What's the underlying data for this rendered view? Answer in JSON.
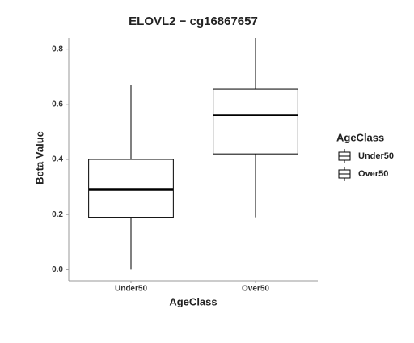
{
  "chart_data": {
    "type": "box",
    "title": "ELOVL2 − cg16867657",
    "xlabel": "AgeClass",
    "ylabel": "Beta Value",
    "legend_title": "AgeClass",
    "categories": [
      "Under50",
      "Over50"
    ],
    "boxes": [
      {
        "min": 0.0,
        "q1": 0.19,
        "median": 0.29,
        "q3": 0.4,
        "max": 0.67
      },
      {
        "min": 0.19,
        "q1": 0.42,
        "median": 0.56,
        "q3": 0.655,
        "max": 0.84
      }
    ],
    "color": "#000000",
    "fill": "#ffffff",
    "ylim": [
      -0.04,
      0.84
    ],
    "yticks": [
      {
        "value": 0,
        "label": "0.0"
      },
      0.2,
      0.4,
      0.6,
      0.8
    ],
    "legend_position": "right"
  }
}
